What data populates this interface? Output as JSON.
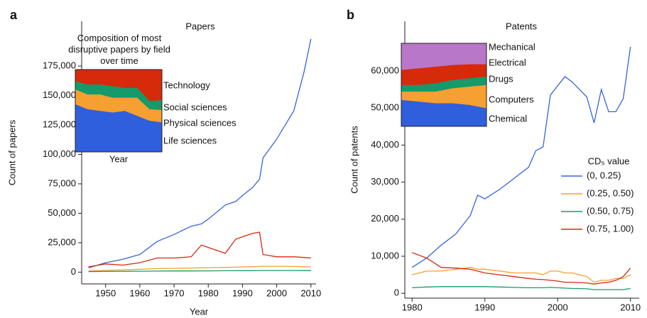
{
  "chart_data": [
    {
      "type": "line",
      "panel": "a",
      "title": "Papers",
      "xlabel": "Year",
      "ylabel": "Count of papers",
      "x": [
        1945,
        1950,
        1955,
        1960,
        1965,
        1970,
        1975,
        1978,
        1980,
        1985,
        1988,
        1990,
        1993,
        1995,
        1996,
        2000,
        2005,
        2008,
        2010
      ],
      "series": [
        {
          "color": "#3a64d8",
          "values": [
            3600,
            8000,
            11000,
            15000,
            26000,
            32000,
            39000,
            41000,
            45000,
            57000,
            60000,
            65000,
            72000,
            79000,
            97000,
            113000,
            137000,
            170000,
            198000
          ]
        },
        {
          "color": "#f5a030",
          "values": [
            1000,
            1500,
            2000,
            2500,
            3000,
            3200,
            3500,
            3700,
            3800,
            4000,
            4200,
            4400,
            4600,
            4800,
            5000,
            5000,
            4800,
            4600,
            4500
          ]
        },
        {
          "color": "#1a9a6a",
          "values": [
            500,
            600,
            700,
            800,
            900,
            1000,
            1000,
            1100,
            1100,
            1200,
            1200,
            1300,
            1300,
            1400,
            1400,
            1400,
            1400,
            1350,
            1300
          ]
        },
        {
          "color": "#d42a10",
          "values": [
            4500,
            7000,
            6000,
            8000,
            12000,
            12000,
            13000,
            23000,
            21000,
            16000,
            28000,
            30000,
            33000,
            34000,
            15000,
            13000,
            13000,
            12500,
            12000
          ]
        }
      ],
      "xlim": [
        1943,
        2011.5
      ],
      "xticks": [
        1950,
        1960,
        1970,
        1980,
        1990,
        2000,
        2010
      ],
      "ylim": [
        -10000,
        213000
      ],
      "yticks": [
        0,
        {
          "value": 25000,
          "label": "25,000"
        },
        {
          "value": 50000,
          "label": "50,000"
        },
        {
          "value": 75000,
          "label": "75,000"
        },
        {
          "value": 100000,
          "label": "100,000"
        },
        {
          "value": 125000,
          "label": "125,000"
        },
        {
          "value": 150000,
          "label": "150,000"
        },
        {
          "value": 175000,
          "label": "175,000"
        }
      ],
      "inset": {
        "type": "area",
        "stacked": true,
        "title": "Composition of most disruptive papers by field over time",
        "xlabel": "Year",
        "ylim": [
          0,
          100
        ],
        "series": [
          {
            "name": "Life sciences",
            "color": "#2f5fdc",
            "values": [
              58,
              52,
              50,
              48,
              50,
              44,
              38,
              36
            ]
          },
          {
            "name": "Physical sciences",
            "color": "#f5a030",
            "values": [
              18,
              18,
              20,
              18,
              16,
              22,
              14,
              15
            ]
          },
          {
            "name": "Social sciences",
            "color": "#159a6a",
            "values": [
              10,
              12,
              12,
              14,
              12,
              12,
              10,
              12
            ]
          },
          {
            "name": "Technology",
            "color": "#d62a0a",
            "values": [
              14,
              18,
              18,
              20,
              22,
              22,
              38,
              37
            ]
          }
        ]
      }
    },
    {
      "type": "line",
      "panel": "b",
      "title": "Patents",
      "xlabel": "Year",
      "ylabel": "Count of patents",
      "legend_title": "CD₅ value",
      "legend": "right",
      "x": [
        1980,
        1982,
        1984,
        1986,
        1988,
        1989,
        1990,
        1992,
        1994,
        1996,
        1997,
        1998,
        1999,
        2000,
        2001,
        2002,
        2004,
        2005,
        2006,
        2007,
        2008,
        2009,
        2010
      ],
      "series": [
        {
          "name": "(0, 0.25)",
          "color": "#3a64d8",
          "values": [
            7000,
            9500,
            13000,
            16000,
            21000,
            26500,
            25500,
            28000,
            31000,
            34000,
            38500,
            39500,
            53500,
            56000,
            58500,
            57000,
            53000,
            46000,
            55000,
            49000,
            49000,
            52500,
            66500
          ]
        },
        {
          "name": "(0.25, 0.50)",
          "color": "#f5a030",
          "values": [
            5000,
            6000,
            6000,
            6500,
            7000,
            6500,
            6500,
            6000,
            5500,
            5500,
            5500,
            5000,
            6000,
            6000,
            5500,
            5500,
            4500,
            3000,
            3500,
            3500,
            4000,
            4000,
            5000
          ]
        },
        {
          "name": "(0.50, 0.75)",
          "color": "#1a9a6a",
          "values": [
            1500,
            1700,
            1800,
            1800,
            1800,
            1800,
            1800,
            1700,
            1600,
            1500,
            1500,
            1500,
            1600,
            1500,
            1400,
            1300,
            1200,
            1000,
            1000,
            1000,
            1000,
            1000,
            1300
          ]
        },
        {
          "name": "(0.75, 1.00)",
          "color": "#d42a10",
          "values": [
            11000,
            9500,
            7000,
            6800,
            6500,
            6000,
            5500,
            5000,
            4500,
            4000,
            3800,
            3700,
            3500,
            3300,
            3000,
            3000,
            2800,
            2500,
            2800,
            3000,
            3500,
            4500,
            6800
          ]
        }
      ],
      "xlim": [
        1979,
        2011.2
      ],
      "xticks": [
        1980,
        1990,
        2000,
        2010
      ],
      "ylim": [
        -1300,
        73400
      ],
      "yticks": [
        0,
        {
          "value": 10000,
          "label": "10,000"
        },
        {
          "value": 20000,
          "label": "20,000"
        },
        {
          "value": 30000,
          "label": "30,000"
        },
        {
          "value": 40000,
          "label": "40,000"
        },
        {
          "value": 50000,
          "label": "50,000"
        },
        {
          "value": 60000,
          "label": "60,000"
        }
      ],
      "inset": {
        "type": "area",
        "stacked": true,
        "ylim": [
          0,
          100
        ],
        "series": [
          {
            "name": "Chemical",
            "color": "#2f5fdc",
            "values": [
              32,
              30,
              28,
              28,
              26,
              22
            ]
          },
          {
            "name": "Computers",
            "color": "#f5a030",
            "values": [
              10,
              12,
              14,
              18,
              22,
              28
            ]
          },
          {
            "name": "Drugs",
            "color": "#159a6a",
            "values": [
              8,
              8,
              10,
              10,
              10,
              10
            ]
          },
          {
            "name": "Electrical",
            "color": "#d62a0a",
            "values": [
              18,
              20,
              20,
              18,
              17,
              15
            ]
          },
          {
            "name": "Mechanical",
            "color": "#b877c8",
            "values": [
              32,
              30,
              28,
              26,
              25,
              25
            ]
          }
        ]
      }
    }
  ]
}
